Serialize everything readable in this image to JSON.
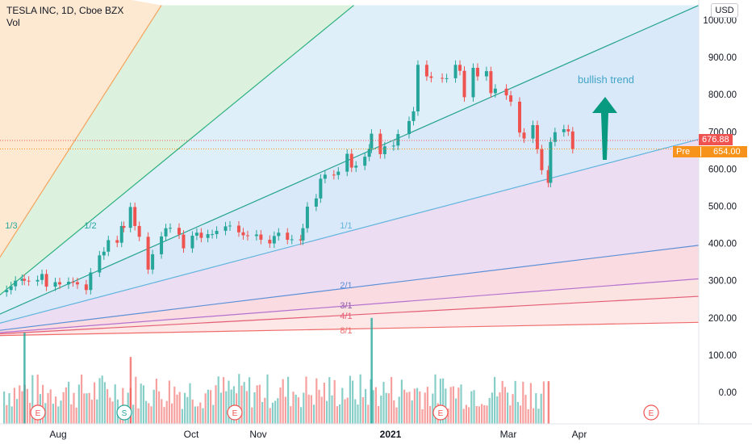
{
  "legend": {
    "title": "TESLA INC, 1D, Cboe BZX",
    "vol": "Vol"
  },
  "currency_label": "USD",
  "price_tags": {
    "last": {
      "label": "676.88",
      "value": 676.88,
      "color": "#ef5350"
    },
    "pre": {
      "prefix": "Pre",
      "label": "654.00",
      "value": 654.0,
      "color": "#f7931a"
    }
  },
  "annotation": {
    "text": "bullish trend",
    "color": "#42a5c8",
    "arrow_color": "#089981"
  },
  "fan_labels": [
    "1/3",
    "1/2",
    "1/1",
    "2/1",
    "3/1",
    "4/1",
    "8/1"
  ],
  "events": [
    {
      "label": "E",
      "date": "2020-07-22",
      "color": "#ef5350"
    },
    {
      "label": "S",
      "date": "2020-08-31",
      "color": "#26a69a"
    },
    {
      "label": "E",
      "date": "2020-10-21",
      "color": "#ef5350"
    },
    {
      "label": "E",
      "date": "2021-01-27",
      "color": "#ef5350"
    },
    {
      "label": "E",
      "date": "2021-04-21",
      "color": "#ef5350"
    }
  ],
  "chart_data": {
    "type": "candlestick",
    "symbol": "TSLA",
    "interval": "1D",
    "y_axis": {
      "ticks": [
        "1000.00",
        "900.00",
        "800.00",
        "700.00",
        "600.00",
        "500.00",
        "400.00",
        "300.00",
        "200.00",
        "100.00",
        "0.00"
      ],
      "range": [
        -40,
        1040
      ]
    },
    "x_axis": {
      "ticks": [
        "Aug",
        "Oct",
        "Nov",
        "2021",
        "Mar",
        "Apr"
      ]
    },
    "x_range": [
      "2020-07-03",
      "2021-05-15"
    ],
    "colors": {
      "up": "#26a69a",
      "down": "#ef5350"
    },
    "close_series": [
      [
        "2020-07-06",
        275
      ],
      [
        "2020-07-08",
        285
      ],
      [
        "2020-07-10",
        300
      ],
      [
        "2020-07-13",
        305
      ],
      [
        "2020-07-14",
        300
      ],
      [
        "2020-07-16",
        298
      ],
      [
        "2020-07-20",
        302
      ],
      [
        "2020-07-22",
        318
      ],
      [
        "2020-07-24",
        284
      ],
      [
        "2020-07-28",
        296
      ],
      [
        "2020-07-30",
        290
      ],
      [
        "2020-08-03",
        297
      ],
      [
        "2020-08-05",
        296
      ],
      [
        "2020-08-07",
        290
      ],
      [
        "2020-08-11",
        275
      ],
      [
        "2020-08-13",
        322
      ],
      [
        "2020-08-17",
        368
      ],
      [
        "2020-08-19",
        378
      ],
      [
        "2020-08-21",
        409
      ],
      [
        "2020-08-25",
        402
      ],
      [
        "2020-08-27",
        447
      ],
      [
        "2020-08-28",
        442
      ],
      [
        "2020-08-31",
        498
      ],
      [
        "2020-09-02",
        447
      ],
      [
        "2020-09-04",
        418
      ],
      [
        "2020-09-08",
        330
      ],
      [
        "2020-09-10",
        371
      ],
      [
        "2020-09-14",
        419
      ],
      [
        "2020-09-16",
        441
      ],
      [
        "2020-09-18",
        442
      ],
      [
        "2020-09-22",
        424
      ],
      [
        "2020-09-24",
        387
      ],
      [
        "2020-09-28",
        421
      ],
      [
        "2020-09-30",
        429
      ],
      [
        "2020-10-02",
        415
      ],
      [
        "2020-10-05",
        425
      ],
      [
        "2020-10-07",
        425
      ],
      [
        "2020-10-09",
        434
      ],
      [
        "2020-10-13",
        446
      ],
      [
        "2020-10-15",
        448
      ],
      [
        "2020-10-19",
        430
      ],
      [
        "2020-10-21",
        422
      ],
      [
        "2020-10-23",
        420
      ],
      [
        "2020-10-27",
        424
      ],
      [
        "2020-10-29",
        410
      ],
      [
        "2020-11-02",
        400
      ],
      [
        "2020-11-04",
        420
      ],
      [
        "2020-11-06",
        429
      ],
      [
        "2020-11-10",
        410
      ],
      [
        "2020-11-12",
        411
      ],
      [
        "2020-11-16",
        408
      ],
      [
        "2020-11-17",
        441
      ],
      [
        "2020-11-19",
        499
      ],
      [
        "2020-11-23",
        521
      ],
      [
        "2020-11-25",
        574
      ],
      [
        "2020-11-27",
        585
      ],
      [
        "2020-12-01",
        584
      ],
      [
        "2020-12-03",
        593
      ],
      [
        "2020-12-07",
        641
      ],
      [
        "2020-12-09",
        604
      ],
      [
        "2020-12-11",
        609
      ],
      [
        "2020-12-15",
        633
      ],
      [
        "2020-12-17",
        655
      ],
      [
        "2020-12-18",
        695
      ],
      [
        "2020-12-22",
        640
      ],
      [
        "2020-12-24",
        661
      ],
      [
        "2020-12-28",
        663
      ],
      [
        "2020-12-30",
        694
      ],
      [
        "2021-01-04",
        729
      ],
      [
        "2021-01-06",
        755
      ],
      [
        "2021-01-08",
        880
      ],
      [
        "2021-01-12",
        849
      ],
      [
        "2021-01-14",
        845
      ],
      [
        "2021-01-19",
        844
      ],
      [
        "2021-01-21",
        844
      ],
      [
        "2021-01-25",
        880
      ],
      [
        "2021-01-27",
        864
      ],
      [
        "2021-01-29",
        793
      ],
      [
        "2021-02-02",
        872
      ],
      [
        "2021-02-04",
        849
      ],
      [
        "2021-02-08",
        863
      ],
      [
        "2021-02-10",
        804
      ],
      [
        "2021-02-12",
        816
      ],
      [
        "2021-02-17",
        798
      ],
      [
        "2021-02-19",
        781
      ],
      [
        "2021-02-23",
        698
      ],
      [
        "2021-02-25",
        682
      ],
      [
        "2021-03-01",
        718
      ],
      [
        "2021-03-03",
        653
      ],
      [
        "2021-03-05",
        597
      ],
      [
        "2021-03-08",
        563
      ],
      [
        "2021-03-09",
        673
      ],
      [
        "2021-03-11",
        699
      ],
      [
        "2021-03-15",
        707
      ],
      [
        "2021-03-17",
        701
      ],
      [
        "2021-03-19",
        654
      ]
    ],
    "volume": [
      [
        "2020-07-14",
        160
      ],
      [
        "2020-08-31",
        95
      ],
      [
        "2020-12-18",
        200
      ],
      [
        "2021-03-08",
        30
      ]
    ],
    "fan_rays": [
      {
        "label": "1/3",
        "end": [
          "2020-09-14",
          1040
        ]
      },
      {
        "label": "1/2",
        "end": [
          "2020-12-10",
          1040
        ]
      },
      {
        "label": "1/1",
        "end": [
          "2021-05-15",
          1040
        ]
      },
      {
        "label": "1/1",
        "end": [
          "2021-05-15",
          680
        ]
      },
      {
        "label": "2/1",
        "end": [
          "2021-05-15",
          395
        ]
      },
      {
        "label": "3/1",
        "end": [
          "2021-05-15",
          305
        ]
      },
      {
        "label": "4/1",
        "end": [
          "2021-05-15",
          258
        ]
      },
      {
        "label": "8/1",
        "end": [
          "2021-05-15",
          188
        ]
      }
    ],
    "fan_origin": [
      "2020-06-10",
      150
    ]
  }
}
